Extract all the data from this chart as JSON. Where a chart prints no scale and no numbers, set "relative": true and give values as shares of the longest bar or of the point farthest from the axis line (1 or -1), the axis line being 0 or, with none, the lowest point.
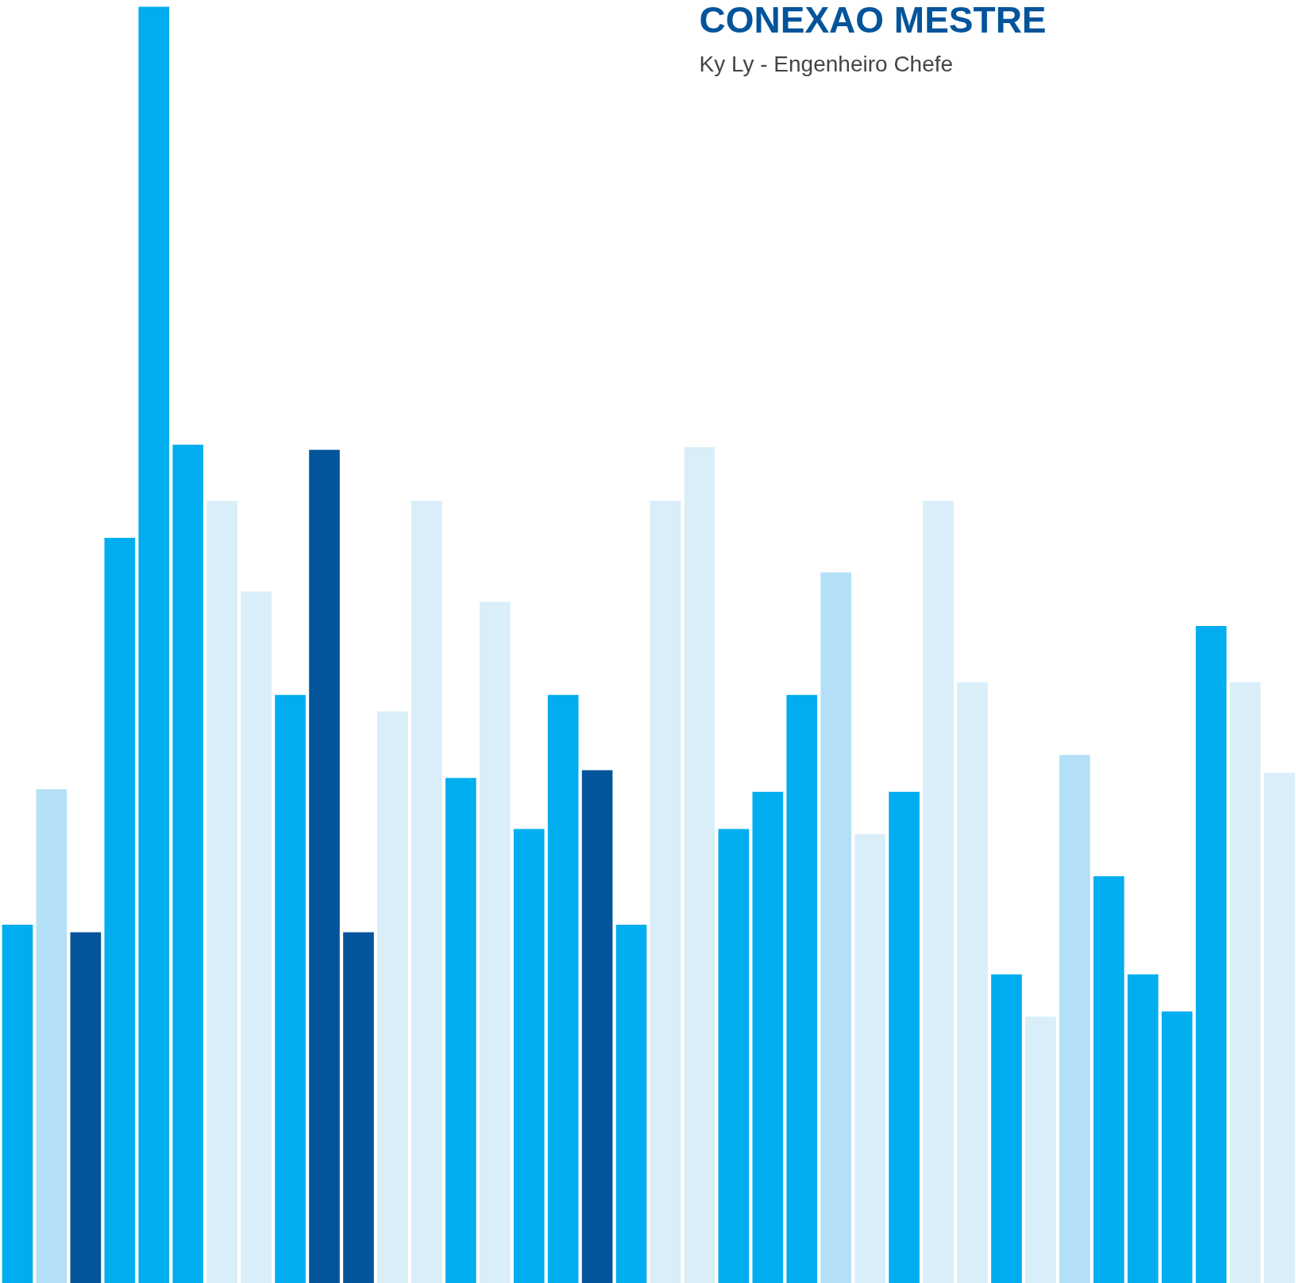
{
  "chart_data": {
    "type": "bar",
    "title": "CONEXAO MESTRE",
    "subtitle": "Ky Ly - Engenheiro Chefe",
    "relative": true,
    "categories": [
      null,
      null,
      null,
      null,
      null,
      null,
      null,
      null,
      null,
      null,
      null,
      null,
      null,
      null,
      null,
      null,
      null,
      null,
      null,
      null,
      null,
      null,
      null,
      null,
      null,
      null,
      null,
      null,
      null,
      null,
      null,
      null,
      null,
      null,
      null,
      null,
      null,
      null
    ],
    "values": [
      0.281,
      0.387,
      0.275,
      0.584,
      1.0,
      0.657,
      0.613,
      0.542,
      0.461,
      0.653,
      0.275,
      0.448,
      0.613,
      0.396,
      0.534,
      0.356,
      0.461,
      0.402,
      0.281,
      0.613,
      0.655,
      0.356,
      0.385,
      0.461,
      0.557,
      0.352,
      0.385,
      0.613,
      0.471,
      0.242,
      0.209,
      0.414,
      0.319,
      0.242,
      0.213,
      0.515,
      0.471,
      0.4
    ],
    "colors": [
      "#00adef",
      "#b3e0f7",
      "#03549b",
      "#00adef",
      "#00adef",
      "#00adef",
      "#d9eef9",
      "#d9eef9",
      "#00adef",
      "#03549b",
      "#03549b",
      "#d9eef9",
      "#d9eef9",
      "#00adef",
      "#d9eef9",
      "#00adef",
      "#00adef",
      "#03549b",
      "#00adef",
      "#d9eef9",
      "#d9eef9",
      "#00adef",
      "#00adef",
      "#00adef",
      "#b3e0f7",
      "#d9eef9",
      "#00adef",
      "#d9eef9",
      "#d9eef9",
      "#00adef",
      "#d9eef9",
      "#b3e0f7",
      "#00adef",
      "#00adef",
      "#00adef",
      "#00adef",
      "#d9eef9",
      "#d9eef9"
    ]
  }
}
